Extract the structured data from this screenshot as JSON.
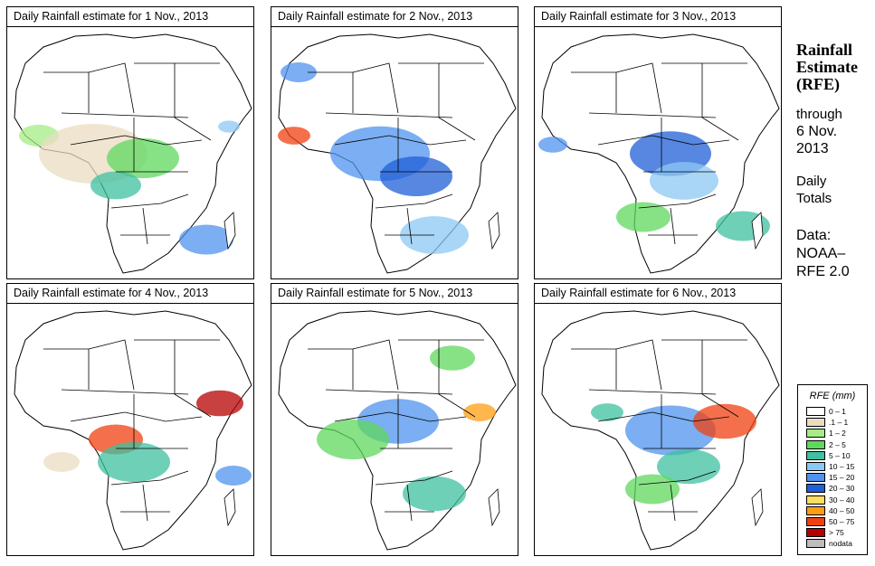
{
  "panels": [
    {
      "title": "Daily Rainfall estimate for  1 Nov., 2013"
    },
    {
      "title": "Daily Rainfall estimate for  2 Nov., 2013"
    },
    {
      "title": "Daily Rainfall estimate for  3 Nov., 2013"
    },
    {
      "title": "Daily Rainfall estimate for  4 Nov., 2013"
    },
    {
      "title": "Daily Rainfall estimate for  5 Nov., 2013"
    },
    {
      "title": "Daily Rainfall estimate for  6 Nov., 2013"
    }
  ],
  "side": {
    "title_line1": "Rainfall",
    "title_line2": "Estimate",
    "title_line3": "(RFE)",
    "through": "through",
    "date_line1": "6 Nov.",
    "date_line2": "2013",
    "daily": "Daily",
    "totals": "Totals",
    "data_label": "Data:",
    "source_line1": "NOAA–",
    "source_line2": "RFE 2.0"
  },
  "legend": {
    "title": "RFE (mm)",
    "items": [
      {
        "label": "0 – 1",
        "color": "#ffffff"
      },
      {
        "label": ".1 – 1",
        "color": "#e9dcc1"
      },
      {
        "label": "1 – 2",
        "color": "#a6ec86"
      },
      {
        "label": "2 – 5",
        "color": "#5fd85e"
      },
      {
        "label": "5 – 10",
        "color": "#3fc0a0"
      },
      {
        "label": "10 – 15",
        "color": "#8cc8f4"
      },
      {
        "label": "15 – 20",
        "color": "#4f93ee"
      },
      {
        "label": "20 – 30",
        "color": "#1f5fd7"
      },
      {
        "label": "30 – 40",
        "color": "#ffdd60"
      },
      {
        "label": "40 – 50",
        "color": "#ff9d10"
      },
      {
        "label": "50 – 75",
        "color": "#f04010"
      },
      {
        "label": "> 75",
        "color": "#b50000"
      },
      {
        "label": "nodata",
        "color": "#bfbcbc"
      }
    ]
  }
}
